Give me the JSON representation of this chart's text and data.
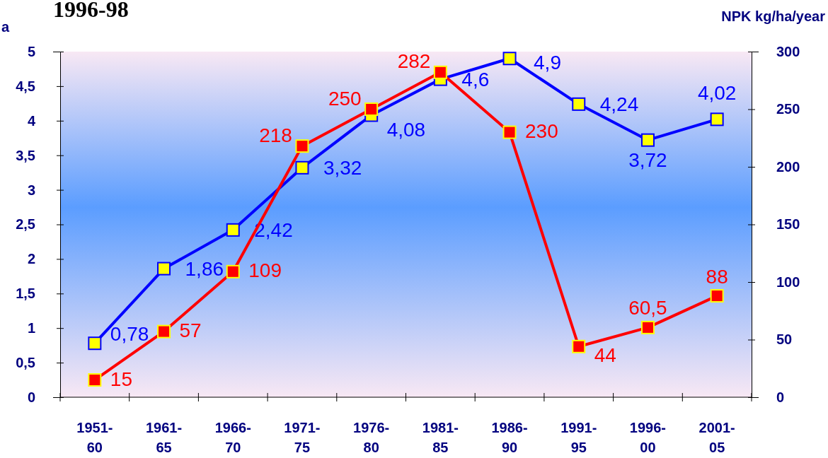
{
  "chart_data": {
    "type": "line",
    "title": "1996-98",
    "ylabel": "a",
    "y2label": "NPK kg/ha/year",
    "categories": [
      "1951-\n60",
      "1961-\n65",
      "1966-\n70",
      "1971-\n75",
      "1976-\n80",
      "1981-\n85",
      "1986-\n90",
      "1991-\n95",
      "1996-\n00",
      "2001-\n05"
    ],
    "series": [
      {
        "color": "#0000ff",
        "values": [
          0.78,
          1.86,
          2.42,
          3.32,
          4.08,
          4.6,
          4.9,
          4.24,
          3.72,
          4.02
        ],
        "value_labels": [
          "0,78",
          "1,86",
          "2,42",
          "3,32",
          "4,08",
          "4,6",
          "4,9",
          "4,24",
          "3,72",
          "4,02"
        ]
      },
      {
        "color": "#ff0000",
        "axis": "y2",
        "values": [
          15,
          57,
          109,
          218,
          250,
          282,
          230,
          44,
          60.5,
          88
        ],
        "value_labels": [
          "15",
          "57",
          "109",
          "218",
          "250",
          "282",
          "230",
          "44",
          "60,5",
          "88"
        ]
      }
    ],
    "ylim": [
      0,
      5
    ],
    "yticks": [
      0,
      {
        "value": 0.5,
        "label": "0,5"
      },
      1,
      {
        "value": 1.5,
        "label": "1,5"
      },
      2,
      {
        "value": 2.5,
        "label": "2,5"
      },
      3,
      {
        "value": 3.5,
        "label": "3,5"
      },
      4,
      {
        "value": 4.5,
        "label": "4,5"
      },
      5
    ],
    "y2lim": [
      0,
      300
    ],
    "y2ticks": [
      0,
      50,
      100,
      150,
      200,
      250,
      300
    ],
    "marker": "square",
    "grid": false
  }
}
